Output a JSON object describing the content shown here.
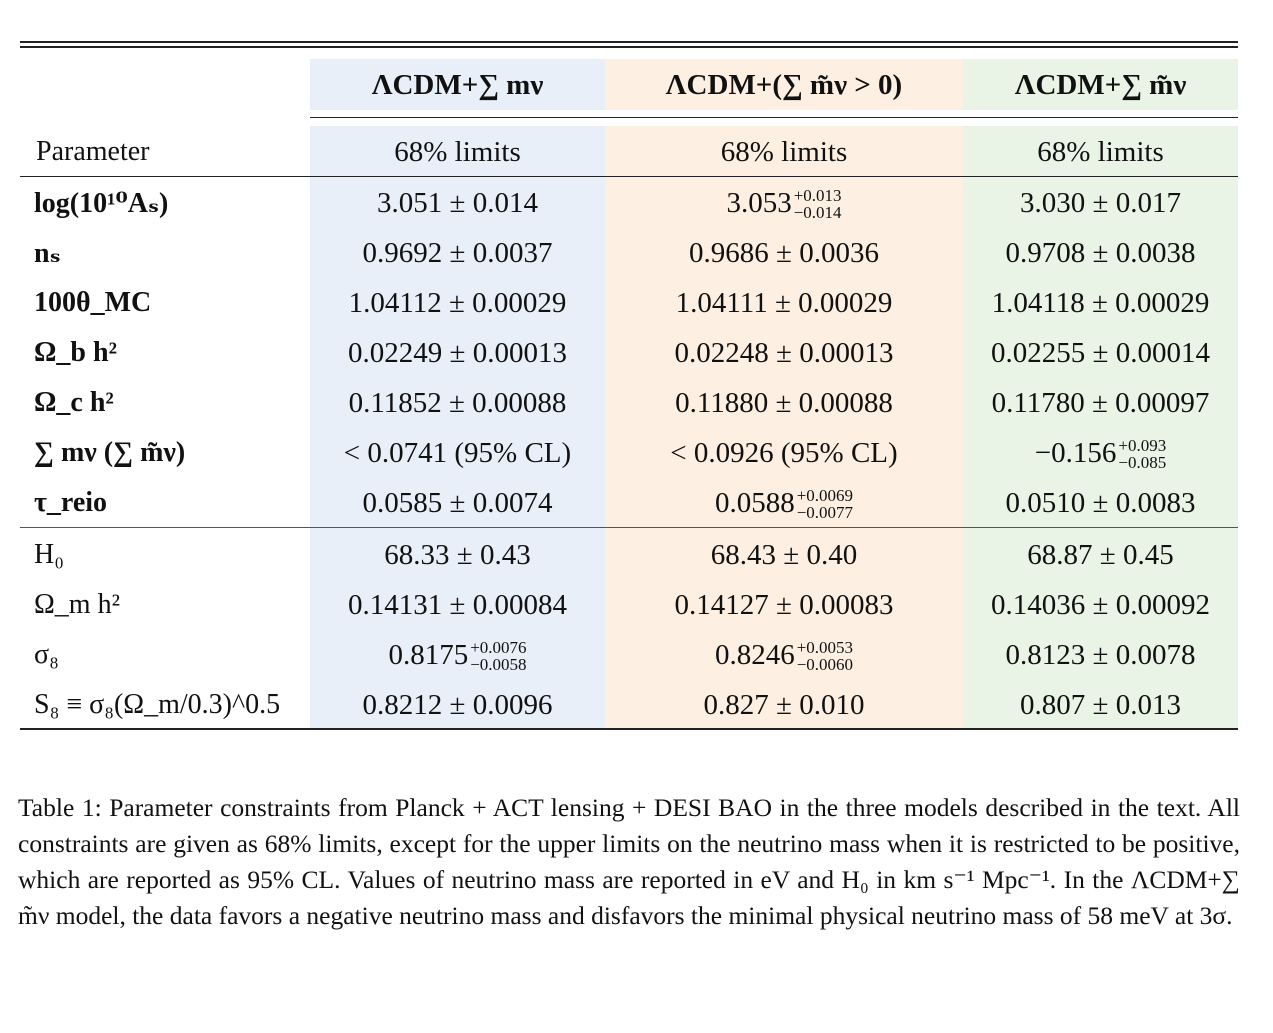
{
  "colors": {
    "col1_bg": "#e8eff8",
    "col2_bg": "#fdf0e3",
    "col3_bg": "#e9f4e6"
  },
  "table": {
    "model_headers": [
      "ΛCDM+∑ mν",
      "ΛCDM+(∑ m̃ν > 0)",
      "ΛCDM+∑ m̃ν"
    ],
    "param_header": "Parameter",
    "limit_headers": [
      "68% limits",
      "68% limits",
      "68% limits"
    ],
    "rows": [
      {
        "param": "log(10¹⁰Aₛ)",
        "v1": {
          "main": "3.051 ± 0.014"
        },
        "v2": {
          "main": "3.053",
          "sup": "+0.013",
          "sub": "−0.014"
        },
        "v3": {
          "main": "3.030 ± 0.017"
        }
      },
      {
        "param": "nₛ",
        "v1": {
          "main": "0.9692 ± 0.0037"
        },
        "v2": {
          "main": "0.9686 ± 0.0036"
        },
        "v3": {
          "main": "0.9708 ± 0.0038"
        }
      },
      {
        "param": "100θ_MC",
        "v1": {
          "main": "1.04112 ± 0.00029"
        },
        "v2": {
          "main": "1.04111 ± 0.00029"
        },
        "v3": {
          "main": "1.04118 ± 0.00029"
        }
      },
      {
        "param": "Ω_b h²",
        "v1": {
          "main": "0.02249 ± 0.00013"
        },
        "v2": {
          "main": "0.02248 ± 0.00013"
        },
        "v3": {
          "main": "0.02255 ± 0.00014"
        }
      },
      {
        "param": "Ω_c h²",
        "v1": {
          "main": "0.11852 ± 0.00088"
        },
        "v2": {
          "main": "0.11880 ± 0.00088"
        },
        "v3": {
          "main": "0.11780 ± 0.00097"
        }
      },
      {
        "param": "∑ mν (∑ m̃ν)",
        "v1": {
          "main": "< 0.0741 (95% CL)"
        },
        "v2": {
          "main": "< 0.0926 (95% CL)"
        },
        "v3": {
          "main": "−0.156",
          "sup": "+0.093",
          "sub": "−0.085"
        }
      },
      {
        "param": "τ_reio",
        "v1": {
          "main": "0.0585 ± 0.0074"
        },
        "v2": {
          "main": "0.0588",
          "sup": "+0.0069",
          "sub": "−0.0077"
        },
        "v3": {
          "main": "0.0510 ± 0.0083"
        }
      },
      {
        "param": "H₀",
        "v1": {
          "main": "68.33 ± 0.43"
        },
        "v2": {
          "main": "68.43 ± 0.40"
        },
        "v3": {
          "main": "68.87 ± 0.45"
        }
      },
      {
        "param": "Ω_m h²",
        "v1": {
          "main": "0.14131 ± 0.00084"
        },
        "v2": {
          "main": "0.14127 ± 0.00083"
        },
        "v3": {
          "main": "0.14036 ± 0.00092"
        }
      },
      {
        "param": "σ₈",
        "v1": {
          "main": "0.8175",
          "sup": "+0.0076",
          "sub": "−0.0058"
        },
        "v2": {
          "main": "0.8246",
          "sup": "+0.0053",
          "sub": "−0.0060"
        },
        "v3": {
          "main": "0.8123 ± 0.0078"
        }
      },
      {
        "param": "S₈ ≡ σ₈(Ω_m/0.3)^0.5",
        "v1": {
          "main": "0.8212 ± 0.0096"
        },
        "v2": {
          "main": "0.827 ± 0.010"
        },
        "v3": {
          "main": "0.807 ± 0.013"
        }
      }
    ]
  },
  "caption": "Table 1: Parameter constraints from Planck + ACT lensing + DESI BAO in the three models described in the text. All constraints are given as 68% limits, except for the upper limits on the neutrino mass when it is restricted to be positive, which are reported as 95% CL. Values of neutrino mass are reported in eV and H₀ in km s⁻¹ Mpc⁻¹. In the ΛCDM+∑ m̃ν model, the data favors a negative neutrino mass and disfavors the minimal physical neutrino mass of 58 meV at 3σ."
}
